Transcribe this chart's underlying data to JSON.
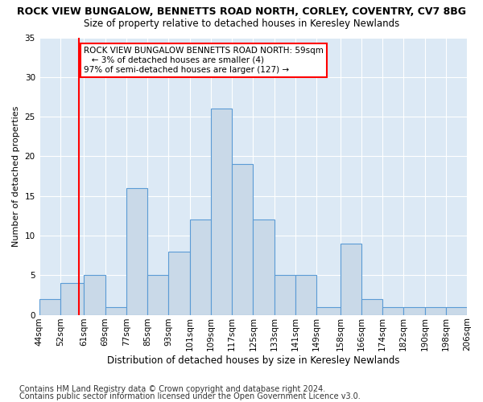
{
  "title1": "ROCK VIEW BUNGALOW, BENNETTS ROAD NORTH, CORLEY, COVENTRY, CV7 8BG",
  "title2": "Size of property relative to detached houses in Keresley Newlands",
  "xlabel": "Distribution of detached houses by size in Keresley Newlands",
  "ylabel": "Number of detached properties",
  "footnote1": "Contains HM Land Registry data © Crown copyright and database right 2024.",
  "footnote2": "Contains public sector information licensed under the Open Government Licence v3.0.",
  "annotation_title": "ROCK VIEW BUNGALOW BENNETTS ROAD NORTH: 59sqm",
  "annotation_line1": "← 3% of detached houses are smaller (4)",
  "annotation_line2": "97% of semi-detached houses are larger (127) →",
  "bar_left_edges": [
    44,
    52,
    61,
    69,
    77,
    85,
    93,
    101,
    109,
    117,
    125,
    133,
    141,
    149,
    158,
    166,
    174,
    182,
    190,
    198
  ],
  "bar_right_edges": [
    52,
    61,
    69,
    77,
    85,
    93,
    101,
    109,
    117,
    125,
    133,
    141,
    149,
    158,
    166,
    174,
    182,
    190,
    198,
    206
  ],
  "bar_heights": [
    2,
    4,
    5,
    1,
    16,
    5,
    8,
    12,
    26,
    19,
    12,
    5,
    5,
    1,
    9,
    2,
    1,
    1,
    1,
    1
  ],
  "bar_color": "#c9d9e8",
  "bar_edge_color": "#5b9bd5",
  "property_line_x": 59,
  "ylim": [
    0,
    35
  ],
  "yticks": [
    0,
    5,
    10,
    15,
    20,
    25,
    30,
    35
  ],
  "bg_color": "#dce9f5",
  "grid_color": "white",
  "annotation_box_color": "white",
  "annotation_box_edge": "red",
  "vline_color": "red",
  "title1_fontsize": 9,
  "title2_fontsize": 8.5,
  "xlabel_fontsize": 8.5,
  "ylabel_fontsize": 8,
  "tick_fontsize": 7.5,
  "footnote_fontsize": 7,
  "annotation_fontsize": 7.5
}
